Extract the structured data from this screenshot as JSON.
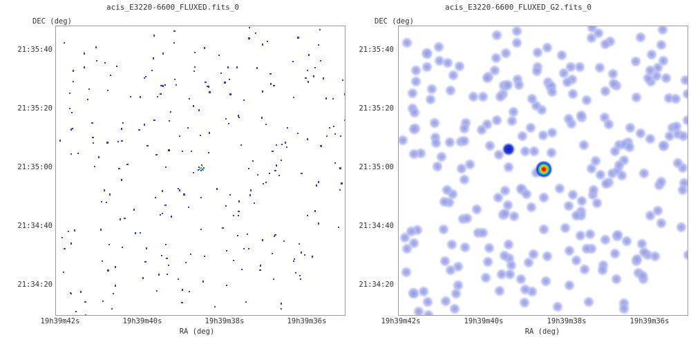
{
  "chart_data": [
    {
      "type": "heatmap",
      "title": "acis_E3220-6600_FLUXED.fits_0",
      "xlabel": "RA (deg)",
      "ylabel": "DEC (deg)",
      "x_ticks": [
        "19h39m42s",
        "19h39m40s",
        "19h39m38s",
        "19h39m36s"
      ],
      "y_ticks": [
        "21:35:40",
        "21:35:20",
        "21:35:00",
        "21:34:40",
        "21:34:20"
      ],
      "source": {
        "ra": "19h39m38.7s",
        "dec": "21:35:00"
      },
      "rendering": "sparse single-photon events (unsmoothed)",
      "colormap": [
        "#2a3bd6",
        "#00c8c8",
        "#ffd400",
        "#e01010"
      ]
    },
    {
      "type": "heatmap",
      "title": "acis_E3220-6600_FLUXED_G2.fits_0",
      "xlabel": "RA (deg)",
      "ylabel": "DEC (deg)",
      "x_ticks": [
        "19h39m42s",
        "19h39m40s",
        "19h39m38s",
        "19h39m36s"
      ],
      "y_ticks": [
        "21:35:40",
        "21:35:20",
        "21:35:00",
        "21:34:40",
        "21:34:20"
      ],
      "source": {
        "ra": "19h39m38.7s",
        "dec": "21:35:00"
      },
      "secondary_source": {
        "ra": "19h39m39.5s",
        "dec": "21:35:06"
      },
      "rendering": "gaussian smoothed (G2)",
      "colormap": [
        "#b8bff0",
        "#2a3bd6",
        "#00c8c8",
        "#ffd400",
        "#e01010"
      ]
    }
  ]
}
